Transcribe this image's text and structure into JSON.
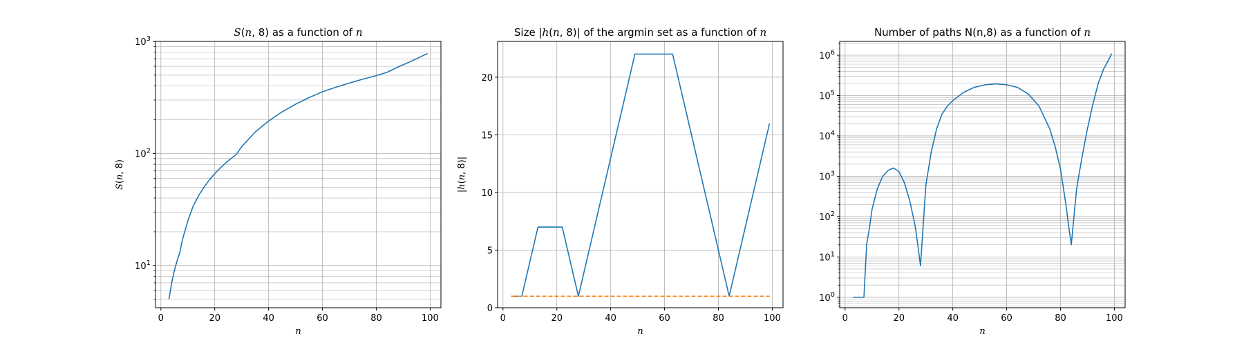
{
  "chart_data": [
    {
      "type": "line",
      "title": "S(n, 8) as a function of n",
      "title_parts": [
        {
          "t": "S",
          "i": true
        },
        {
          "t": "(",
          "i": false
        },
        {
          "t": "n",
          "i": true
        },
        {
          "t": ", 8) as a function of ",
          "i": false
        },
        {
          "t": "n",
          "i": true
        }
      ],
      "xlabel": "n",
      "ylabel": "S(n, 8)",
      "xlim": [
        -2,
        104
      ],
      "ylim": [
        4.2,
        1000
      ],
      "yscale": "log",
      "grid": true,
      "xticks": [
        0,
        20,
        40,
        60,
        80,
        100
      ],
      "xtick_labels": [
        "0",
        "20",
        "40",
        "60",
        "80",
        "100"
      ],
      "yticks": [
        10,
        100,
        1000
      ],
      "ytick_labels": [
        "10^1",
        "10^2",
        "10^3"
      ],
      "series": [
        {
          "color": "#1f77b4",
          "style": "solid",
          "x": [
            3,
            4,
            5,
            6,
            7,
            8,
            10,
            12,
            14,
            16,
            18,
            20,
            22,
            24,
            26,
            28,
            30,
            35,
            40,
            45,
            50,
            55,
            60,
            65,
            70,
            75,
            80,
            84,
            88,
            92,
            96,
            99
          ],
          "y": [
            5,
            7,
            9,
            11,
            13,
            17,
            25,
            34,
            42,
            50,
            58,
            66,
            74,
            82,
            90,
            98,
            115,
            155,
            195,
            235,
            275,
            315,
            355,
            390,
            425,
            460,
            495,
            530,
            590,
            650,
            720,
            780
          ]
        }
      ]
    },
    {
      "type": "line",
      "title": "Size |h(n, 8)| of the argmin set as a function of n",
      "title_parts": [
        {
          "t": "Size |",
          "i": false
        },
        {
          "t": "h",
          "i": true
        },
        {
          "t": "(",
          "i": false
        },
        {
          "t": "n",
          "i": true
        },
        {
          "t": ", 8)| of the argmin set as a function of ",
          "i": false
        },
        {
          "t": "n",
          "i": true
        }
      ],
      "xlabel": "n",
      "ylabel": "|h(n, 8)|",
      "xlim": [
        -2,
        104
      ],
      "ylim": [
        0,
        23.1
      ],
      "yscale": "linear",
      "grid": true,
      "xticks": [
        0,
        20,
        40,
        60,
        80,
        100
      ],
      "xtick_labels": [
        "0",
        "20",
        "40",
        "60",
        "80",
        "100"
      ],
      "yticks": [
        0,
        5,
        10,
        15,
        20
      ],
      "ytick_labels": [
        "0",
        "5",
        "10",
        "15",
        "20"
      ],
      "series": [
        {
          "color": "#1f77b4",
          "style": "solid",
          "x": [
            3,
            7,
            13,
            22,
            28,
            49,
            63,
            84,
            99
          ],
          "y": [
            1,
            1,
            7,
            7,
            1,
            22,
            22,
            1,
            16
          ]
        },
        {
          "color": "#ff7f0e",
          "style": "dashed",
          "x": [
            3,
            99
          ],
          "y": [
            1,
            1
          ]
        }
      ]
    },
    {
      "type": "line",
      "title": "Number of paths N(n,8) as a function of n",
      "title_parts": [
        {
          "t": "Number of paths N(n,8) as a function of ",
          "i": false
        },
        {
          "t": "n",
          "i": true
        }
      ],
      "xlabel": "n",
      "ylabel": "",
      "xlim": [
        -2,
        104
      ],
      "ylim": [
        0.55,
        2200000
      ],
      "yscale": "log",
      "grid": true,
      "xticks": [
        0,
        20,
        40,
        60,
        80,
        100
      ],
      "xtick_labels": [
        "0",
        "20",
        "40",
        "60",
        "80",
        "100"
      ],
      "yticks": [
        1,
        10,
        100,
        1000,
        10000,
        100000,
        1000000
      ],
      "ytick_labels": [
        "10^0",
        "10^1",
        "10^2",
        "10^3",
        "10^4",
        "10^5",
        "10^6"
      ],
      "series": [
        {
          "color": "#1f77b4",
          "style": "solid",
          "x": [
            3,
            7,
            8,
            9,
            10,
            12,
            14,
            16,
            18,
            20,
            22,
            24,
            26,
            27,
            28,
            29,
            30,
            32,
            34,
            36,
            38,
            40,
            44,
            48,
            52,
            56,
            60,
            64,
            68,
            72,
            76,
            78,
            80,
            82,
            83,
            84,
            85,
            86,
            88,
            90,
            92,
            94,
            96,
            98,
            99
          ],
          "y": [
            1,
            1,
            20,
            50,
            150,
            500,
            1000,
            1400,
            1600,
            1300,
            700,
            250,
            60,
            20,
            6,
            60,
            600,
            4000,
            15000,
            35000,
            55000,
            75000,
            120000,
            160000,
            185000,
            195000,
            185000,
            160000,
            110000,
            55000,
            15000,
            5500,
            1500,
            200,
            60,
            20,
            100,
            500,
            3000,
            15000,
            60000,
            200000,
            450000,
            800000,
            1100000
          ]
        }
      ]
    }
  ]
}
